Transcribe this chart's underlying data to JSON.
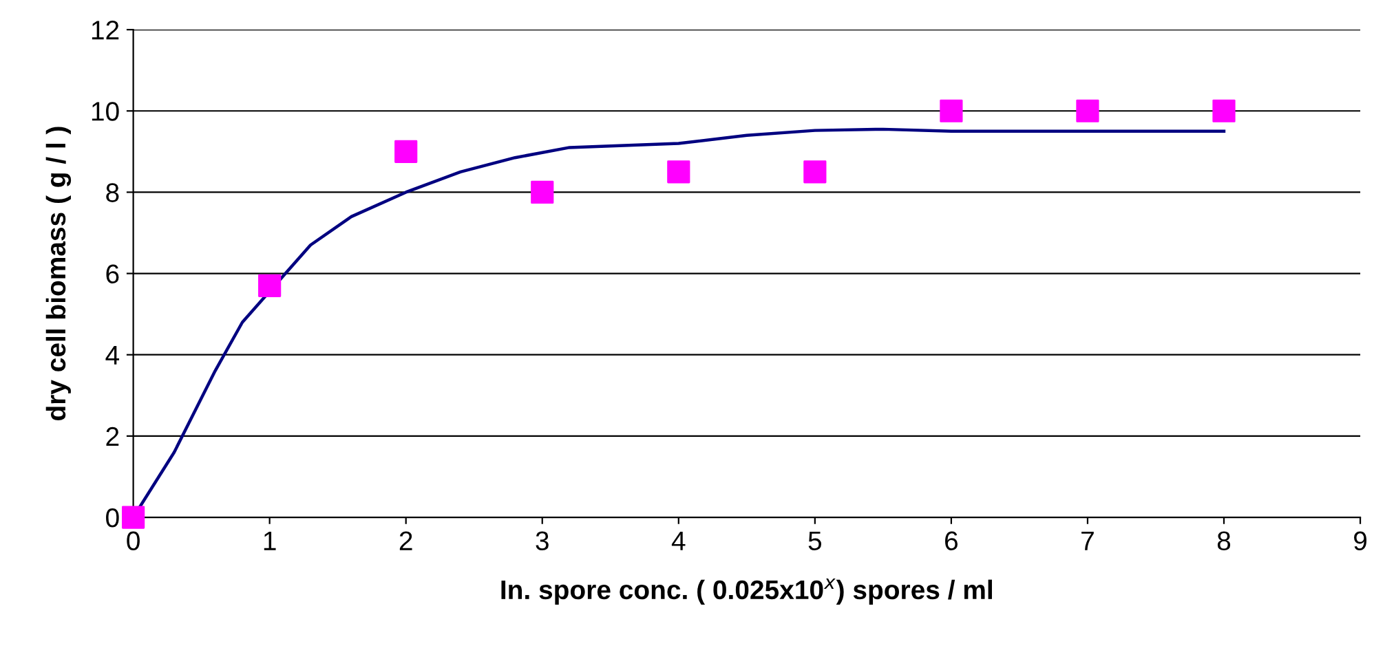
{
  "chart_data": {
    "type": "scatter",
    "xlabel": "In. spore conc. ( 0.025x10$^{x}$) spores / ml",
    "ylabel": "dry cell biomass ( g / l )",
    "series": [
      {
        "color": "#ff00ff",
        "marker": "square",
        "x": [
          0,
          1,
          2,
          3,
          4,
          5,
          6,
          7,
          8
        ],
        "values": [
          0,
          5.7,
          9,
          8,
          8.5,
          8.5,
          10,
          10,
          10
        ]
      },
      {
        "type": "line",
        "color": "#000080",
        "marker": "none",
        "line_style": "solid",
        "x": [
          0,
          0.3,
          0.6,
          0.8,
          1.3,
          1.6,
          2,
          2.4,
          2.8,
          3.2,
          3.6,
          4,
          4.5,
          5,
          5.5,
          6,
          7,
          8
        ],
        "values": [
          0,
          1.6,
          3.6,
          4.8,
          6.7,
          7.4,
          8.0,
          8.5,
          8.85,
          9.1,
          9.15,
          9.2,
          9.4,
          9.52,
          9.55,
          9.5,
          9.5,
          9.5
        ]
      }
    ],
    "xlim": [
      0,
      9
    ],
    "xticks": [
      0,
      1,
      2,
      3,
      4,
      5,
      6,
      7,
      8,
      9
    ],
    "ylim": [
      0,
      12
    ],
    "yticks": [
      0,
      2,
      4,
      6,
      8,
      10,
      12
    ],
    "grid": "y",
    "legend": false
  }
}
